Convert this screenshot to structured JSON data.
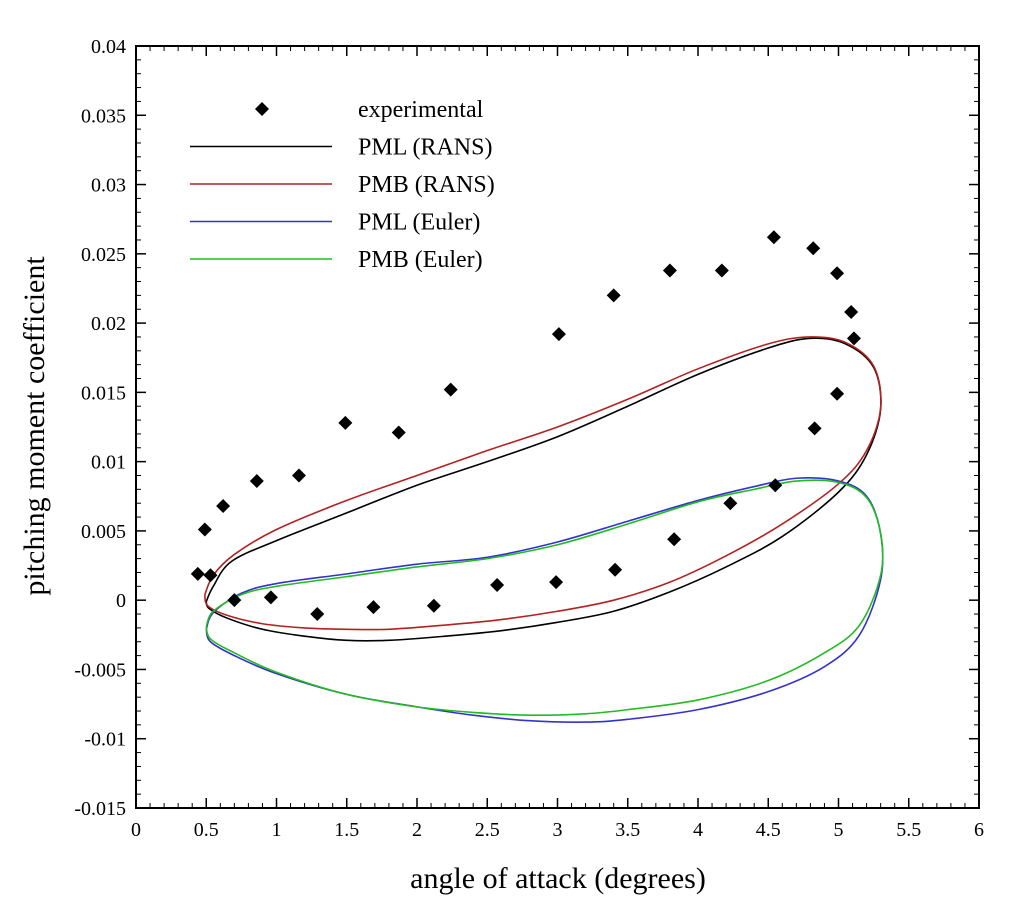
{
  "chart_data": {
    "type": "scatter",
    "title": "",
    "xlabel": "angle of attack (degrees)",
    "ylabel": "pitching moment coefficient",
    "xlim": [
      0,
      6
    ],
    "ylim": [
      -0.015,
      0.04
    ],
    "xticks": [
      0,
      0.5,
      1,
      1.5,
      2,
      2.5,
      3,
      3.5,
      4,
      4.5,
      5,
      5.5,
      6
    ],
    "xtick_labels": [
      "0",
      "0.5",
      "1",
      "1.5",
      "2",
      "2.5",
      "3",
      "3.5",
      "4",
      "4.5",
      "5",
      "5.5",
      "6"
    ],
    "yticks": [
      -0.015,
      -0.01,
      -0.005,
      0,
      0.005,
      0.01,
      0.015,
      0.02,
      0.025,
      0.03,
      0.035,
      0.04
    ],
    "ytick_labels": [
      "-0.015",
      "-0.01",
      "-0.005",
      "0",
      "0.005",
      "0.01",
      "0.015",
      "0.02",
      "0.025",
      "0.03",
      "0.035",
      "0.04"
    ],
    "grid": false,
    "legend_position": "top-left",
    "series": [
      {
        "name": "experimental",
        "kind": "markers",
        "marker": "diamond",
        "color": "#000000",
        "points": [
          [
            0.44,
            0.0019
          ],
          [
            0.49,
            0.0051
          ],
          [
            0.53,
            0.0018
          ],
          [
            0.62,
            0.0068
          ],
          [
            0.7,
            0.0
          ],
          [
            0.86,
            0.0086
          ],
          [
            0.96,
            0.0002
          ],
          [
            1.16,
            0.009
          ],
          [
            1.29,
            -0.001
          ],
          [
            1.49,
            0.0128
          ],
          [
            1.69,
            -0.0005
          ],
          [
            1.87,
            0.0121
          ],
          [
            2.12,
            -0.0004
          ],
          [
            2.24,
            0.0152
          ],
          [
            2.57,
            0.0011
          ],
          [
            3.01,
            0.0192
          ],
          [
            2.99,
            0.0013
          ],
          [
            3.41,
            0.0022
          ],
          [
            3.4,
            0.022
          ],
          [
            3.8,
            0.0238
          ],
          [
            3.83,
            0.0044
          ],
          [
            4.17,
            0.0238
          ],
          [
            4.23,
            0.007
          ],
          [
            4.54,
            0.0262
          ],
          [
            4.55,
            0.0083
          ],
          [
            4.82,
            0.0254
          ],
          [
            4.83,
            0.0124
          ],
          [
            4.99,
            0.0236
          ],
          [
            4.99,
            0.0149
          ],
          [
            5.09,
            0.0208
          ],
          [
            5.11,
            0.0189
          ]
        ]
      },
      {
        "name": "PML (RANS)",
        "kind": "line",
        "color": "#000000",
        "points": [
          [
            0.5,
            -0.0001
          ],
          [
            0.55,
            0.001
          ],
          [
            0.68,
            0.0028
          ],
          [
            1.0,
            0.0043
          ],
          [
            1.5,
            0.0063
          ],
          [
            2.0,
            0.0083
          ],
          [
            2.5,
            0.01
          ],
          [
            3.0,
            0.0118
          ],
          [
            3.5,
            0.014
          ],
          [
            4.0,
            0.0163
          ],
          [
            4.5,
            0.0182
          ],
          [
            4.8,
            0.0189
          ],
          [
            5.05,
            0.0185
          ],
          [
            5.25,
            0.0168
          ],
          [
            5.3,
            0.0138
          ],
          [
            5.2,
            0.0105
          ],
          [
            5.0,
            0.0078
          ],
          [
            4.6,
            0.0046
          ],
          [
            4.2,
            0.0024
          ],
          [
            3.8,
            0.0006
          ],
          [
            3.4,
            -0.0008
          ],
          [
            3.0,
            -0.0016
          ],
          [
            2.6,
            -0.0022
          ],
          [
            2.2,
            -0.0026
          ],
          [
            1.8,
            -0.0029
          ],
          [
            1.5,
            -0.0029
          ],
          [
            1.2,
            -0.0026
          ],
          [
            0.9,
            -0.0021
          ],
          [
            0.65,
            -0.0013
          ],
          [
            0.52,
            -0.0006
          ],
          [
            0.5,
            -0.0001
          ]
        ]
      },
      {
        "name": "PMB (RANS)",
        "kind": "line",
        "color": "#b22222",
        "points": [
          [
            0.49,
            0.0004
          ],
          [
            0.55,
            0.0018
          ],
          [
            0.7,
            0.0033
          ],
          [
            1.0,
            0.0051
          ],
          [
            1.5,
            0.0072
          ],
          [
            2.0,
            0.009
          ],
          [
            2.5,
            0.0108
          ],
          [
            3.0,
            0.0125
          ],
          [
            3.5,
            0.0145
          ],
          [
            4.0,
            0.0167
          ],
          [
            4.5,
            0.0185
          ],
          [
            4.8,
            0.019
          ],
          [
            5.05,
            0.0186
          ],
          [
            5.25,
            0.0169
          ],
          [
            5.3,
            0.0139
          ],
          [
            5.2,
            0.0108
          ],
          [
            5.0,
            0.0084
          ],
          [
            4.6,
            0.0055
          ],
          [
            4.2,
            0.0032
          ],
          [
            3.8,
            0.0013
          ],
          [
            3.4,
            0.0
          ],
          [
            3.0,
            -0.0008
          ],
          [
            2.6,
            -0.0014
          ],
          [
            2.2,
            -0.0018
          ],
          [
            1.8,
            -0.0021
          ],
          [
            1.5,
            -0.0021
          ],
          [
            1.2,
            -0.002
          ],
          [
            0.9,
            -0.0017
          ],
          [
            0.65,
            -0.0011
          ],
          [
            0.51,
            -0.0004
          ],
          [
            0.49,
            0.0004
          ]
        ]
      },
      {
        "name": "PML (Euler)",
        "kind": "line",
        "color": "#3333cc",
        "points": [
          [
            0.5,
            -0.0021
          ],
          [
            0.55,
            -0.0009
          ],
          [
            0.75,
            0.0005
          ],
          [
            1.0,
            0.0012
          ],
          [
            1.5,
            0.0019
          ],
          [
            2.0,
            0.0026
          ],
          [
            2.5,
            0.0031
          ],
          [
            3.0,
            0.0042
          ],
          [
            3.5,
            0.0057
          ],
          [
            4.0,
            0.0072
          ],
          [
            4.4,
            0.0082
          ],
          [
            4.7,
            0.0088
          ],
          [
            5.0,
            0.0086
          ],
          [
            5.2,
            0.0075
          ],
          [
            5.3,
            0.0048
          ],
          [
            5.3,
            0.0015
          ],
          [
            5.15,
            -0.0025
          ],
          [
            4.9,
            -0.0048
          ],
          [
            4.5,
            -0.0066
          ],
          [
            4.0,
            -0.0079
          ],
          [
            3.5,
            -0.0086
          ],
          [
            3.2,
            -0.0088
          ],
          [
            2.8,
            -0.0087
          ],
          [
            2.4,
            -0.0083
          ],
          [
            2.0,
            -0.0077
          ],
          [
            1.5,
            -0.0068
          ],
          [
            1.0,
            -0.0053
          ],
          [
            0.7,
            -0.004
          ],
          [
            0.53,
            -0.003
          ],
          [
            0.5,
            -0.0021
          ]
        ]
      },
      {
        "name": "PMB (Euler)",
        "kind": "line",
        "color": "#22bb22",
        "points": [
          [
            0.5,
            -0.0019
          ],
          [
            0.55,
            -0.0008
          ],
          [
            0.75,
            0.0004
          ],
          [
            1.0,
            0.001
          ],
          [
            1.5,
            0.0017
          ],
          [
            2.0,
            0.0024
          ],
          [
            2.5,
            0.003
          ],
          [
            3.0,
            0.004
          ],
          [
            3.5,
            0.0055
          ],
          [
            4.0,
            0.0071
          ],
          [
            4.4,
            0.008
          ],
          [
            4.7,
            0.0086
          ],
          [
            5.0,
            0.0085
          ],
          [
            5.2,
            0.0074
          ],
          [
            5.3,
            0.0048
          ],
          [
            5.3,
            0.0018
          ],
          [
            5.15,
            -0.0018
          ],
          [
            4.9,
            -0.0038
          ],
          [
            4.5,
            -0.0058
          ],
          [
            4.0,
            -0.0072
          ],
          [
            3.5,
            -0.0079
          ],
          [
            3.2,
            -0.0082
          ],
          [
            2.8,
            -0.0083
          ],
          [
            2.4,
            -0.0081
          ],
          [
            2.0,
            -0.0077
          ],
          [
            1.5,
            -0.0068
          ],
          [
            1.0,
            -0.0052
          ],
          [
            0.7,
            -0.0038
          ],
          [
            0.53,
            -0.0028
          ],
          [
            0.5,
            -0.0019
          ]
        ]
      }
    ]
  }
}
